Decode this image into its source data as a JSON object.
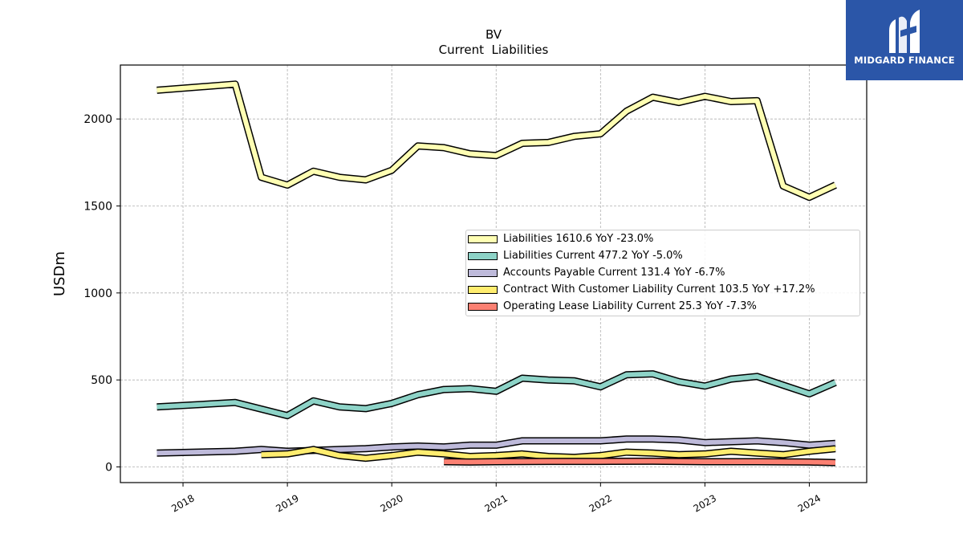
{
  "brand": {
    "name": "MIDGARD FINANCE",
    "color": "#2b56a8"
  },
  "chart_data": {
    "type": "line",
    "title": "BV",
    "subtitle": "Current  Liabilities",
    "ylabel": "USDm",
    "xlabel": "",
    "ylim": [
      -90,
      2310
    ],
    "xlim": [
      2017.4,
      2024.55
    ],
    "yticks": [
      0,
      500,
      1000,
      1500,
      2000
    ],
    "xticks": [
      {
        "value": 2018.0,
        "label": "2018"
      },
      {
        "value": 2019.0,
        "label": "2019"
      },
      {
        "value": 2020.0,
        "label": "2020"
      },
      {
        "value": 2021.0,
        "label": "2021"
      },
      {
        "value": 2022.0,
        "label": "2022"
      },
      {
        "value": 2023.0,
        "label": "2023"
      },
      {
        "value": 2024.0,
        "label": "2024"
      }
    ],
    "grid": true,
    "legend_position": "center-right",
    "series": [
      {
        "name": "Liabilities",
        "legend": "Liabilities  1610.6 YoY -23.0%",
        "color": "#ffffb3",
        "points": [
          [
            2017.75,
            2165
          ],
          [
            2018.5,
            2200
          ],
          [
            2018.75,
            1665
          ],
          [
            2019.0,
            1620
          ],
          [
            2019.25,
            1700
          ],
          [
            2019.5,
            1665
          ],
          [
            2019.75,
            1650
          ],
          [
            2020.0,
            1705
          ],
          [
            2020.25,
            1845
          ],
          [
            2020.5,
            1835
          ],
          [
            2020.75,
            1800
          ],
          [
            2021.0,
            1790
          ],
          [
            2021.25,
            1860
          ],
          [
            2021.5,
            1865
          ],
          [
            2021.75,
            1900
          ],
          [
            2022.0,
            1915
          ],
          [
            2022.25,
            2045
          ],
          [
            2022.5,
            2125
          ],
          [
            2022.75,
            2095
          ],
          [
            2023.0,
            2130
          ],
          [
            2023.25,
            2100
          ],
          [
            2023.5,
            2105
          ],
          [
            2023.75,
            1615
          ],
          [
            2024.0,
            1550
          ],
          [
            2024.25,
            1620
          ]
        ]
      },
      {
        "name": "Liabilities Current",
        "legend": "Liabilities Current  477.2 YoY -5.0%",
        "color": "#8dd3c7",
        "points": [
          [
            2017.75,
            345
          ],
          [
            2018.5,
            370
          ],
          [
            2019.0,
            295
          ],
          [
            2019.25,
            380
          ],
          [
            2019.5,
            345
          ],
          [
            2019.75,
            335
          ],
          [
            2020.0,
            365
          ],
          [
            2020.25,
            415
          ],
          [
            2020.5,
            445
          ],
          [
            2020.75,
            450
          ],
          [
            2021.0,
            435
          ],
          [
            2021.25,
            510
          ],
          [
            2021.5,
            500
          ],
          [
            2021.75,
            495
          ],
          [
            2022.0,
            460
          ],
          [
            2022.25,
            530
          ],
          [
            2022.5,
            535
          ],
          [
            2022.75,
            490
          ],
          [
            2023.0,
            465
          ],
          [
            2023.25,
            505
          ],
          [
            2023.5,
            520
          ],
          [
            2023.75,
            470
          ],
          [
            2024.0,
            420
          ],
          [
            2024.25,
            485
          ]
        ]
      },
      {
        "name": "Accounts Payable Current",
        "legend": "Accounts Payable Current  131.4 YoY -6.7%",
        "color": "#bebada",
        "points": [
          [
            2017.75,
            80
          ],
          [
            2018.5,
            90
          ],
          [
            2018.75,
            100
          ],
          [
            2019.0,
            90
          ],
          [
            2019.5,
            100
          ],
          [
            2019.75,
            105
          ],
          [
            2020.0,
            115
          ],
          [
            2020.25,
            120
          ],
          [
            2020.5,
            115
          ],
          [
            2020.75,
            125
          ],
          [
            2021.0,
            125
          ],
          [
            2021.25,
            150
          ],
          [
            2021.5,
            150
          ],
          [
            2021.75,
            150
          ],
          [
            2022.0,
            150
          ],
          [
            2022.25,
            160
          ],
          [
            2022.5,
            160
          ],
          [
            2022.75,
            155
          ],
          [
            2023.0,
            140
          ],
          [
            2023.25,
            145
          ],
          [
            2023.5,
            150
          ],
          [
            2023.75,
            140
          ],
          [
            2024.0,
            125
          ],
          [
            2024.25,
            135
          ]
        ]
      },
      {
        "name": "Contract With Customer Liability Current",
        "legend": "Contract With Customer Liability Current  103.5 YoY +17.2%",
        "color": "#ffed6f",
        "points": [
          [
            2018.75,
            70
          ],
          [
            2019.0,
            75
          ],
          [
            2019.25,
            100
          ],
          [
            2019.5,
            65
          ],
          [
            2019.75,
            50
          ],
          [
            2020.0,
            65
          ],
          [
            2020.25,
            85
          ],
          [
            2020.5,
            75
          ],
          [
            2020.75,
            60
          ],
          [
            2021.0,
            65
          ],
          [
            2021.25,
            75
          ],
          [
            2021.5,
            60
          ],
          [
            2021.75,
            55
          ],
          [
            2022.0,
            65
          ],
          [
            2022.25,
            85
          ],
          [
            2022.5,
            80
          ],
          [
            2022.75,
            70
          ],
          [
            2023.0,
            75
          ],
          [
            2023.25,
            90
          ],
          [
            2023.5,
            80
          ],
          [
            2023.75,
            70
          ],
          [
            2024.0,
            90
          ],
          [
            2024.25,
            105
          ]
        ]
      },
      {
        "name": "Operating Lease Liability Current",
        "legend": "Operating Lease Liability Current  25.3 YoY -7.3%",
        "color": "#fb8072",
        "points": [
          [
            2020.5,
            30
          ],
          [
            2020.75,
            28
          ],
          [
            2021.0,
            30
          ],
          [
            2021.5,
            32
          ],
          [
            2022.0,
            32
          ],
          [
            2022.5,
            33
          ],
          [
            2023.0,
            30
          ],
          [
            2023.5,
            30
          ],
          [
            2024.0,
            28
          ],
          [
            2024.25,
            25
          ]
        ]
      }
    ]
  }
}
